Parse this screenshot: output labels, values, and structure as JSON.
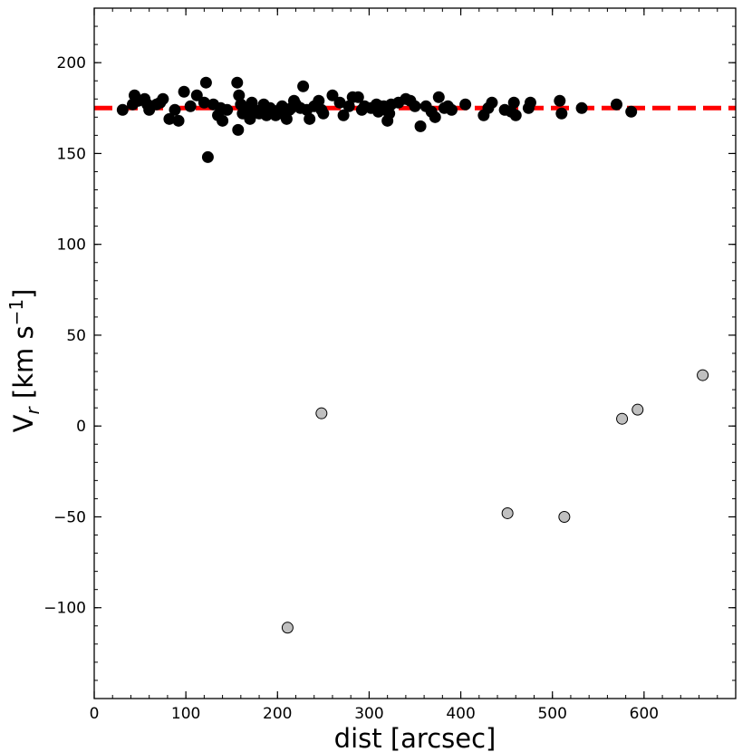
{
  "chart_data": {
    "type": "scatter",
    "title": "",
    "xlabel": "dist [arcsec]",
    "ylabel_main": "V",
    "ylabel_sub": "r",
    "ylabel_unit": " [km s",
    "ylabel_sup": "−1",
    "ylabel_close": "]",
    "xlim": [
      0,
      700
    ],
    "ylim": [
      -150,
      230
    ],
    "xticks": [
      0,
      100,
      200,
      300,
      400,
      500,
      600
    ],
    "yticks": [
      -100,
      -50,
      0,
      50,
      100,
      150,
      200
    ],
    "ytick_labels": [
      "−100",
      "−50",
      "0",
      "50",
      "100",
      "150",
      "200"
    ],
    "xminor_step": 20,
    "yminor_step": 10,
    "grid": false,
    "reference_line": {
      "y": 175,
      "style": "dashed",
      "color": "#ff0000"
    },
    "colors": {
      "members": "#000000",
      "nonmembers": "#c0c0c0",
      "nonmember_edge": "#000000"
    },
    "series": [
      {
        "values": [
          [
            31,
            174
          ],
          [
            42,
            177
          ],
          [
            44,
            182
          ],
          [
            48,
            179
          ],
          [
            55,
            180
          ],
          [
            58,
            177
          ],
          [
            60,
            174
          ],
          [
            68,
            177
          ],
          [
            72,
            178
          ],
          [
            75,
            180
          ],
          [
            82,
            169
          ],
          [
            88,
            174
          ],
          [
            92,
            168
          ],
          [
            98,
            184
          ],
          [
            105,
            176
          ],
          [
            112,
            182
          ],
          [
            120,
            178
          ],
          [
            122,
            189
          ],
          [
            124,
            148
          ],
          [
            130,
            177
          ],
          [
            135,
            171
          ],
          [
            138,
            175
          ],
          [
            140,
            168
          ],
          [
            145,
            174
          ],
          [
            156,
            189
          ],
          [
            157,
            163
          ],
          [
            158,
            182
          ],
          [
            160,
            177
          ],
          [
            162,
            172
          ],
          [
            164,
            174
          ],
          [
            168,
            175
          ],
          [
            170,
            169
          ],
          [
            172,
            178
          ],
          [
            175,
            174
          ],
          [
            178,
            173
          ],
          [
            180,
            172
          ],
          [
            185,
            177
          ],
          [
            188,
            171
          ],
          [
            192,
            175
          ],
          [
            195,
            172
          ],
          [
            198,
            171
          ],
          [
            202,
            174
          ],
          [
            205,
            176
          ],
          [
            208,
            171
          ],
          [
            210,
            169
          ],
          [
            213,
            174
          ],
          [
            215,
            175
          ],
          [
            218,
            179
          ],
          [
            220,
            177
          ],
          [
            225,
            175
          ],
          [
            228,
            187
          ],
          [
            232,
            174
          ],
          [
            235,
            169
          ],
          [
            240,
            176
          ],
          [
            245,
            179
          ],
          [
            248,
            174
          ],
          [
            250,
            172
          ],
          [
            260,
            182
          ],
          [
            268,
            178
          ],
          [
            272,
            171
          ],
          [
            278,
            176
          ],
          [
            282,
            181
          ],
          [
            288,
            181
          ],
          [
            292,
            174
          ],
          [
            295,
            176
          ],
          [
            302,
            175
          ],
          [
            308,
            177
          ],
          [
            310,
            173
          ],
          [
            312,
            176
          ],
          [
            316,
            176
          ],
          [
            318,
            174
          ],
          [
            320,
            168
          ],
          [
            322,
            172
          ],
          [
            324,
            177
          ],
          [
            332,
            178
          ],
          [
            340,
            180
          ],
          [
            345,
            179
          ],
          [
            350,
            176
          ],
          [
            356,
            165
          ],
          [
            362,
            176
          ],
          [
            368,
            173
          ],
          [
            372,
            170
          ],
          [
            376,
            181
          ],
          [
            382,
            175
          ],
          [
            386,
            176
          ],
          [
            390,
            174
          ],
          [
            405,
            177
          ],
          [
            425,
            171
          ],
          [
            430,
            175
          ],
          [
            434,
            178
          ],
          [
            448,
            174
          ],
          [
            455,
            173
          ],
          [
            458,
            178
          ],
          [
            460,
            171
          ],
          [
            474,
            175
          ],
          [
            476,
            178
          ],
          [
            508,
            179
          ],
          [
            510,
            172
          ],
          [
            532,
            175
          ],
          [
            570,
            177
          ],
          [
            586,
            173
          ]
        ]
      },
      {
        "values": [
          [
            211,
            -111
          ],
          [
            248,
            7
          ],
          [
            451,
            -48
          ],
          [
            513,
            -50
          ],
          [
            576,
            4
          ],
          [
            593,
            9
          ],
          [
            664,
            28
          ]
        ]
      }
    ]
  }
}
